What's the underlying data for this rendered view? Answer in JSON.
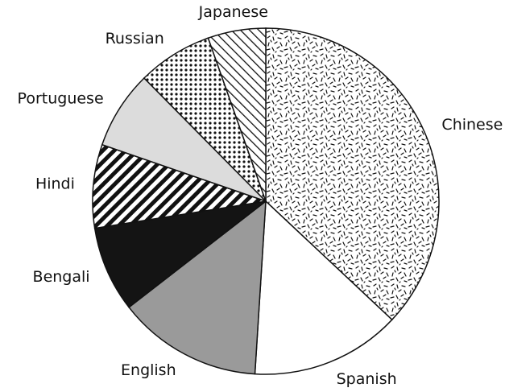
{
  "chart_data": {
    "type": "pie",
    "categories": [
      "Chinese",
      "Spanish",
      "English",
      "Bengali",
      "Hindi",
      "Portuguese",
      "Russian",
      "Japanese"
    ],
    "values": [
      37,
      14,
      13.5,
      8,
      7.8,
      7.3,
      7,
      5.4
    ],
    "colors": [
      "speckle",
      "#ffffff",
      "#9a9a9a",
      "#141414",
      "thick-stripes",
      "#dcdcdc",
      "dots",
      "thin-stripes"
    ]
  }
}
